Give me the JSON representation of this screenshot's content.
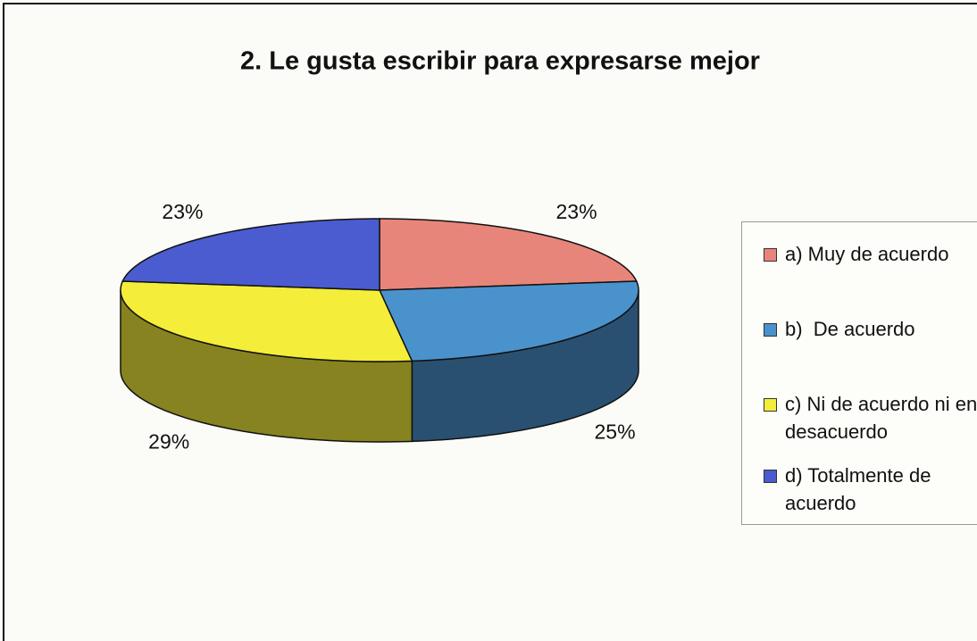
{
  "chart_data": {
    "type": "pie",
    "title": "2. Le gusta escribir para expresarse mejor",
    "categories": [
      "a) Muy de acuerdo",
      "b)  De acuerdo",
      "c) Ni de acuerdo ni en desacuerdo",
      "d) Totalmente de acuerdo"
    ],
    "values": [
      23,
      25,
      29,
      23
    ],
    "value_labels": [
      "23%",
      "25%",
      "29%",
      "23%"
    ],
    "colors": [
      "#e8857a",
      "#4a92cc",
      "#f4ee3a",
      "#4a5ccf"
    ],
    "legend": "right"
  }
}
